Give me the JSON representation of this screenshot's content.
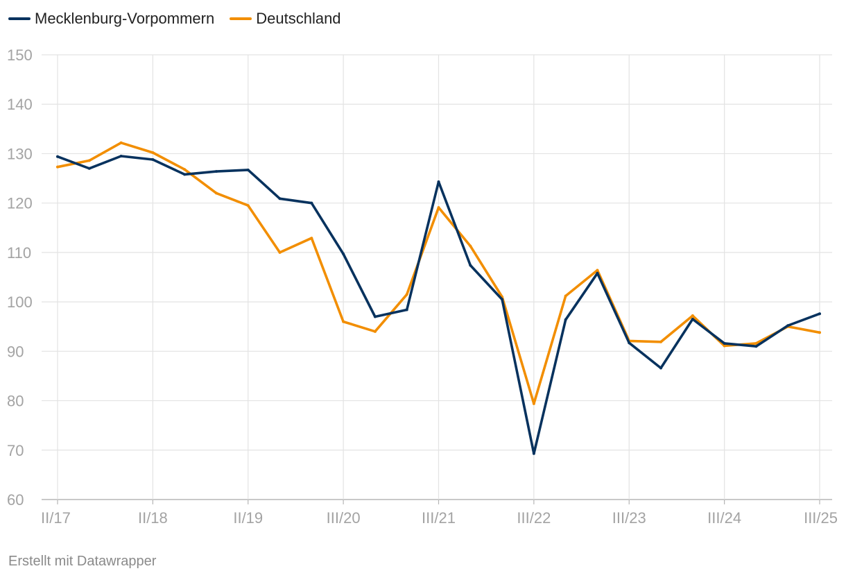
{
  "chart_data": {
    "type": "line",
    "title": "",
    "xlabel": "",
    "ylabel": "",
    "ylim": [
      60,
      150
    ],
    "yticks": [
      150,
      140,
      130,
      120,
      110,
      100,
      90,
      80,
      70,
      60
    ],
    "x_ticks": [
      {
        "label": "II/17",
        "index": 0
      },
      {
        "label": "II/18",
        "index": 3
      },
      {
        "label": "II/19",
        "index": 6
      },
      {
        "label": "III/20",
        "index": 9
      },
      {
        "label": "III/21",
        "index": 12
      },
      {
        "label": "III/22",
        "index": 15
      },
      {
        "label": "III/23",
        "index": 18
      },
      {
        "label": "III/24",
        "index": 21
      },
      {
        "label": "III/25",
        "index": 24
      }
    ],
    "series": [
      {
        "name": "Mecklenburg-Vorpommern",
        "color": "#07325e",
        "values": [
          129.4,
          127.0,
          129.5,
          128.8,
          125.8,
          126.4,
          126.7,
          120.9,
          120.0,
          109.7,
          97.0,
          98.4,
          124.3,
          107.4,
          100.5,
          69.3,
          96.4,
          105.8,
          91.7,
          86.6,
          96.5,
          91.6,
          91.0,
          95.2,
          97.6
        ]
      },
      {
        "name": "Deutschland",
        "color": "#f28e00",
        "values": [
          127.3,
          128.6,
          132.2,
          130.2,
          126.8,
          122.0,
          119.5,
          110.0,
          112.9,
          96.0,
          94.0,
          101.5,
          119.1,
          111.3,
          101.0,
          79.4,
          101.2,
          106.4,
          92.1,
          91.9,
          97.2,
          91.1,
          91.6,
          95.0,
          93.8
        ]
      }
    ],
    "grid": true,
    "legend_position": "top-left"
  },
  "legend": [
    {
      "label": "Mecklenburg-Vorpommern",
      "color": "#07325e"
    },
    {
      "label": "Deutschland",
      "color": "#f28e00"
    }
  ],
  "footer": {
    "credit": "Erstellt mit Datawrapper"
  }
}
